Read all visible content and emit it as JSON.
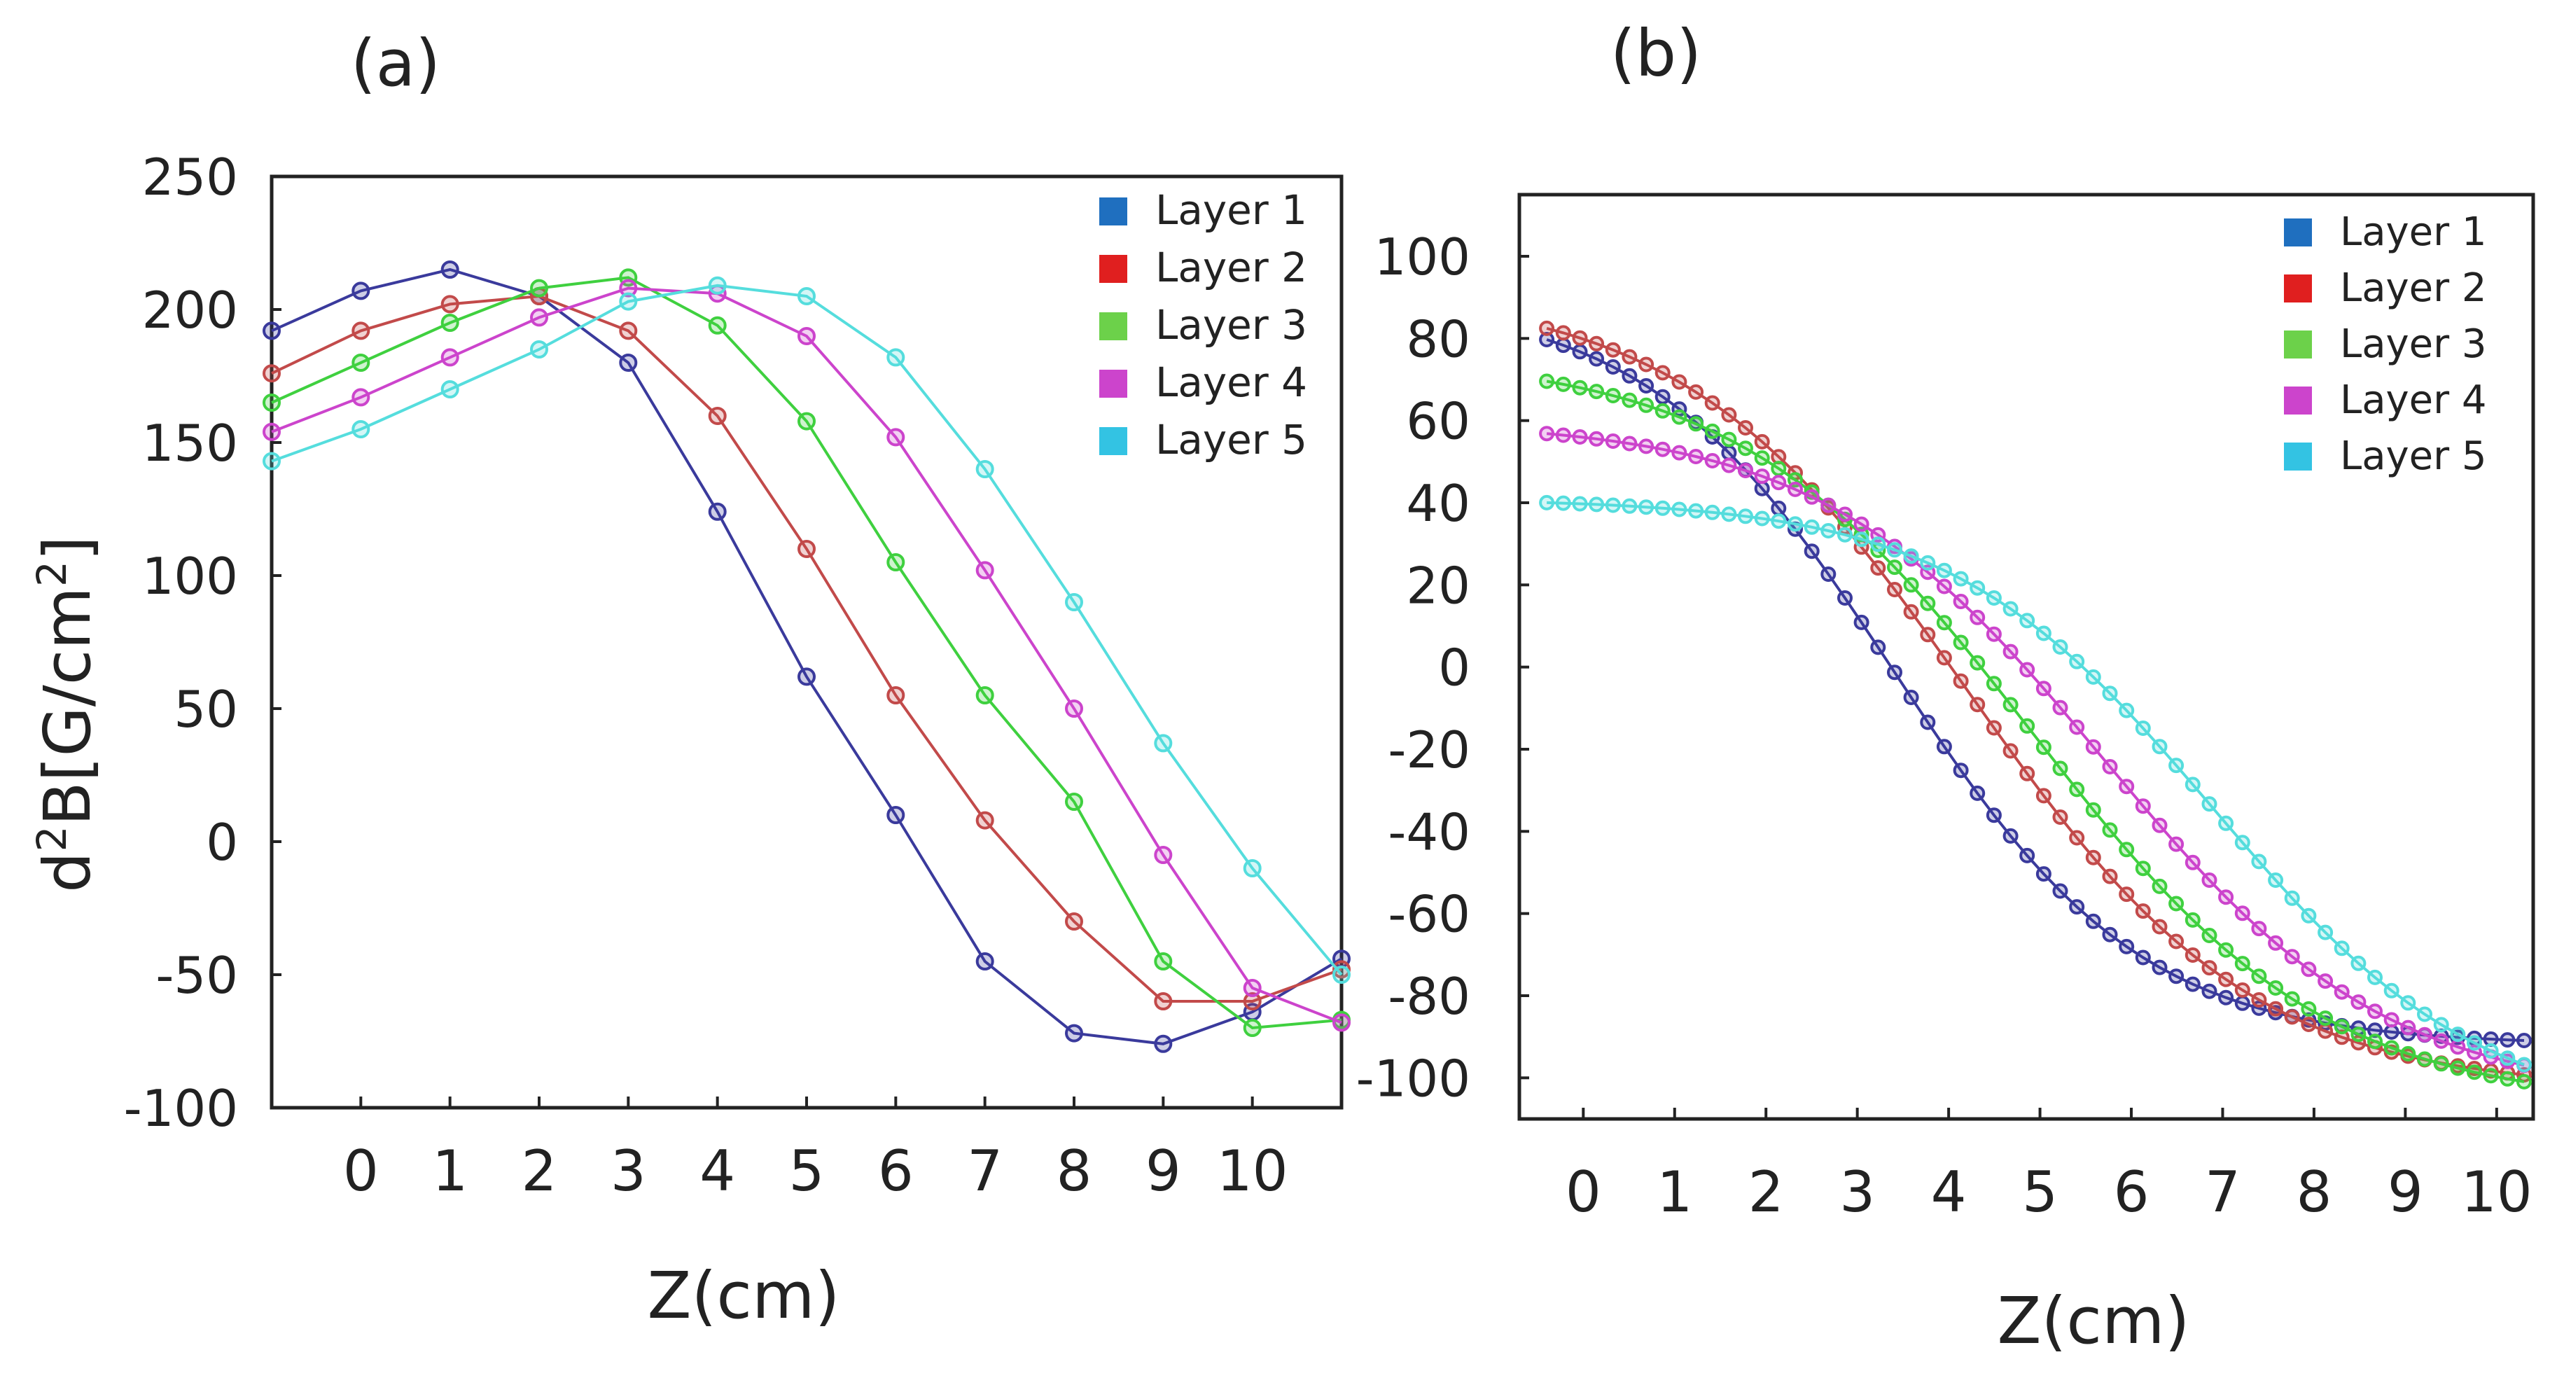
{
  "figure": {
    "ylabel_main": "d",
    "ylabel_sup1": "2",
    "ylabel_mid": "B[G/cm",
    "ylabel_sup2": "2",
    "ylabel_end": "]"
  },
  "chart_data": [
    {
      "type": "line",
      "panel_label": "(a)",
      "xlabel": "Z(cm)",
      "xlim": [
        -1,
        11
      ],
      "ylim": [
        -100,
        250
      ],
      "x_ticks": [
        0,
        1,
        2,
        3,
        4,
        5,
        6,
        7,
        8,
        9,
        10
      ],
      "x_tick_labels": [
        "0",
        "1",
        "2",
        "3",
        "4",
        "5",
        "6",
        "7",
        "8",
        "9",
        "10"
      ],
      "y_ticks": [
        250,
        200,
        150,
        100,
        50,
        0,
        -50,
        -100
      ],
      "y_tick_labels": [
        "250",
        "200",
        "150",
        "100",
        "50",
        "0",
        "-50",
        "-100"
      ],
      "legend_position": "top-right",
      "x": [
        -1,
        0,
        1,
        2,
        3,
        4,
        5,
        6,
        7,
        8,
        9,
        10,
        11
      ],
      "series": [
        {
          "name": "Layer 1",
          "color": "#3a3a9c",
          "legend_color": "#1f6fbf",
          "values": [
            192,
            207,
            215,
            205,
            180,
            124,
            62,
            10,
            -45,
            -72,
            -76,
            -64,
            -44
          ]
        },
        {
          "name": "Layer 2",
          "color": "#c24a4a",
          "legend_color": "#e01f1f",
          "values": [
            176,
            192,
            202,
            205,
            192,
            160,
            110,
            55,
            8,
            -30,
            -60,
            -60,
            -48
          ]
        },
        {
          "name": "Layer 3",
          "color": "#3fd03f",
          "legend_color": "#6cd14a",
          "values": [
            165,
            180,
            195,
            208,
            212,
            194,
            158,
            105,
            55,
            15,
            -45,
            -70,
            -67
          ]
        },
        {
          "name": "Layer 4",
          "color": "#cc44cc",
          "legend_color": "#cc44cc",
          "values": [
            154,
            167,
            182,
            197,
            208,
            206,
            190,
            152,
            102,
            50,
            -5,
            -55,
            -68
          ]
        },
        {
          "name": "Layer 5",
          "color": "#55dddd",
          "legend_color": "#33c3e3",
          "values": [
            143,
            155,
            170,
            185,
            203,
            209,
            205,
            182,
            140,
            90,
            37,
            -10,
            -50
          ]
        }
      ]
    },
    {
      "type": "line",
      "panel_label": "(b)",
      "xlabel": "Z(cm)",
      "xlim": [
        -0.7,
        10.4
      ],
      "ylim": [
        -110,
        115
      ],
      "x_ticks": [
        0,
        1,
        2,
        3,
        4,
        5,
        6,
        7,
        8,
        9,
        10
      ],
      "x_tick_labels": [
        "0",
        "1",
        "2",
        "3",
        "4",
        "5",
        "6",
        "7",
        "8",
        "9",
        "10"
      ],
      "y_ticks": [
        100,
        80,
        60,
        40,
        20,
        0,
        -20,
        -40,
        -60,
        -80,
        -100
      ],
      "y_tick_labels": [
        "100",
        "80",
        "60",
        "40",
        "20",
        "0",
        "-20",
        "-40",
        "-60",
        "-80",
        "-100"
      ],
      "legend_position": "top-right",
      "x_range": [
        -0.4,
        10.3
      ],
      "series": [
        {
          "name": "Layer 1",
          "color": "#3a3a9c",
          "legend_color": "#1f6fbf",
          "curve": {
            "lower": -92,
            "upper": 90,
            "center": 3.4,
            "width": 1.35
          }
        },
        {
          "name": "Layer 2",
          "color": "#c24a4a",
          "legend_color": "#e01f1f",
          "curve": {
            "lower": -103,
            "upper": 92,
            "center": 4.2,
            "width": 1.55
          }
        },
        {
          "name": "Layer 3",
          "color": "#3fd03f",
          "legend_color": "#6cd14a",
          "curve": {
            "lower": -107,
            "upper": 76,
            "center": 4.9,
            "width": 1.6
          }
        },
        {
          "name": "Layer 4",
          "color": "#cc44cc",
          "legend_color": "#cc44cc",
          "curve": {
            "lower": -105,
            "upper": 60,
            "center": 5.7,
            "width": 1.55
          }
        },
        {
          "name": "Layer 5",
          "color": "#55dddd",
          "legend_color": "#33c3e3",
          "curve": {
            "lower": -110,
            "upper": 41,
            "center": 6.9,
            "width": 1.45
          }
        }
      ]
    }
  ]
}
